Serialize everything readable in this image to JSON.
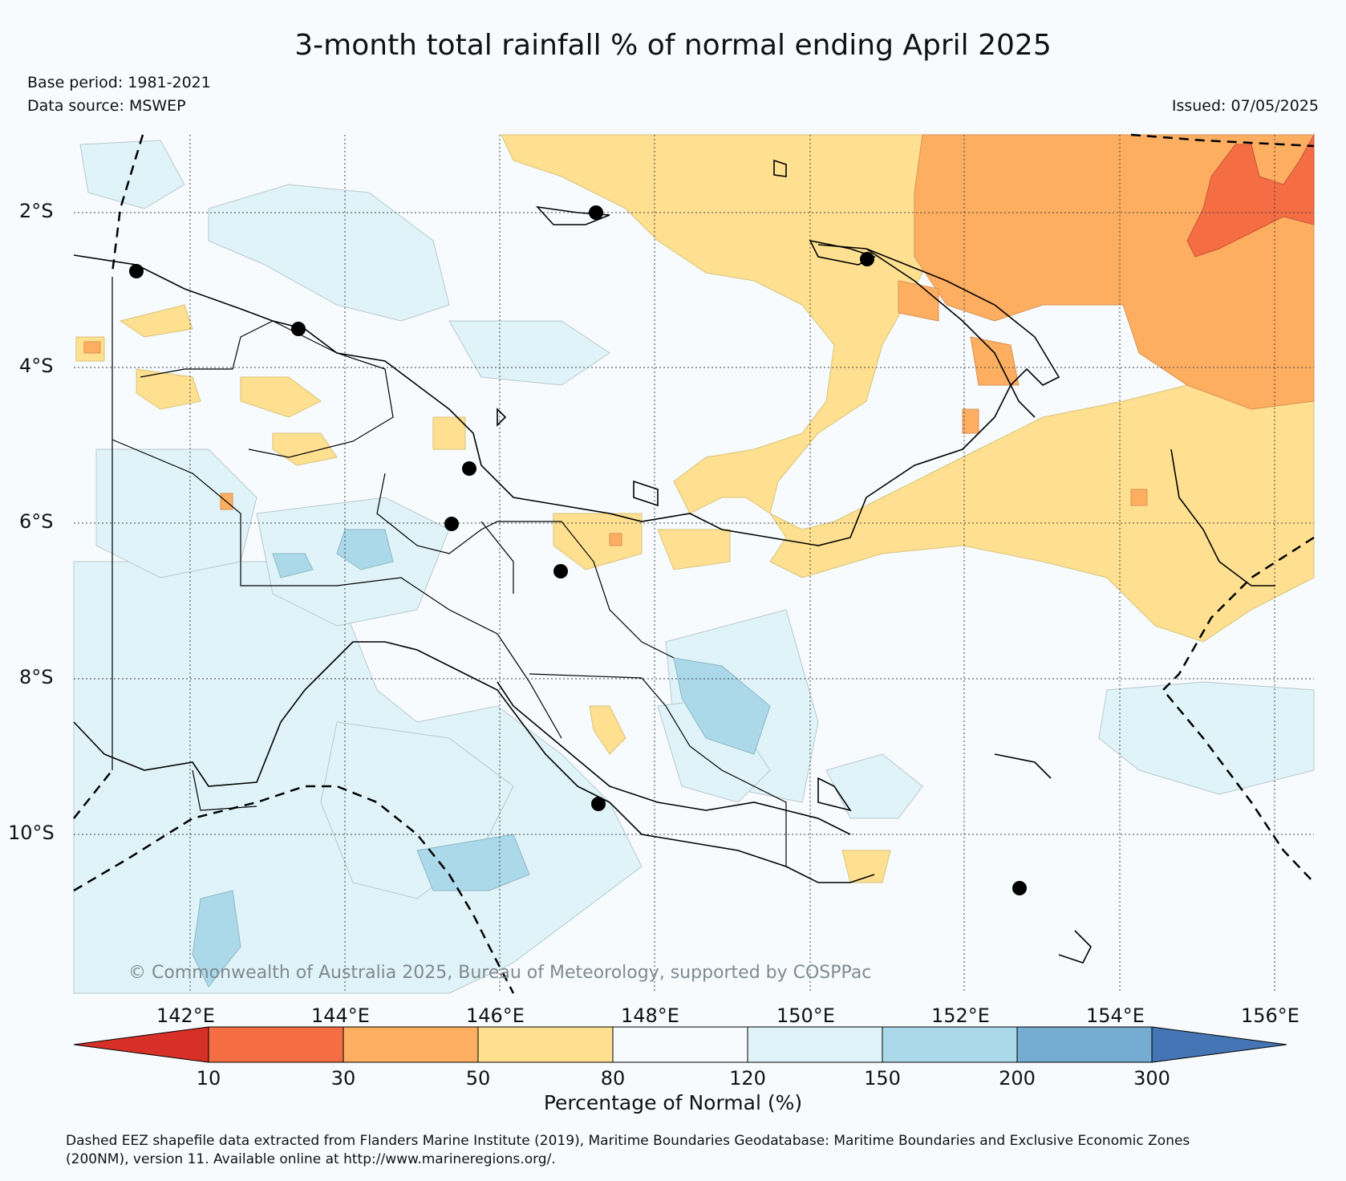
{
  "title": "3-month total rainfall % of normal ending April 2025",
  "base_period": "Base period: 1981-2021",
  "data_source": "Data source: MSWEP",
  "issued": "Issued: 07/05/2025",
  "lat_ticks": [
    "2°S",
    "4°S",
    "6°S",
    "8°S",
    "10°S"
  ],
  "lon_ticks": [
    "142°E",
    "144°E",
    "146°E",
    "148°E",
    "150°E",
    "152°E",
    "154°E",
    "156°E"
  ],
  "copyright": "© Commonwealth of Australia 2025, Bureau of Meteorology, supported by COSPPac",
  "colorbar": {
    "label": "Percentage of Normal (%)",
    "ticks": [
      "10",
      "30",
      "50",
      "80",
      "120",
      "150",
      "200",
      "300"
    ],
    "colors": {
      "below_10": "#d73027",
      "10_30": "#f46d43",
      "30_50": "#fdae61",
      "50_80": "#fee090",
      "80_120": "#f7fbfd",
      "120_150": "#e0f3f8",
      "150_200": "#abd9e9",
      "200_300": "#74add1",
      "above_300": "#4575b4"
    }
  },
  "footnote_line1": "Dashed EEZ shapefile data extracted from Flanders Marine Institute (2019), Maritime Boundaries Geodatabase: Maritime Boundaries and Exclusive Economic Zones",
  "footnote_line2": "(200NM), version 11. Available online at http://www.marineregions.org/."
}
